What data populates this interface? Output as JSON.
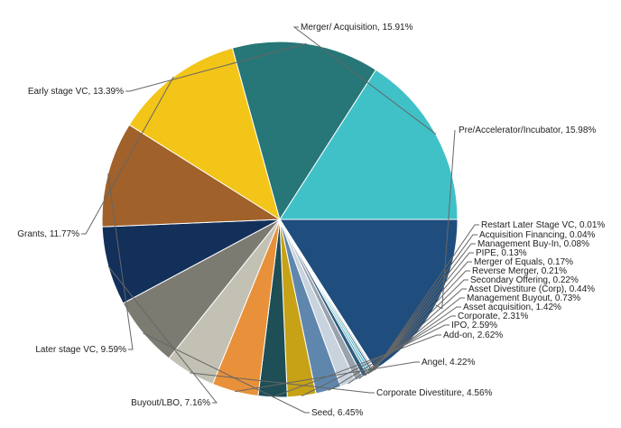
{
  "chart_data": {
    "type": "pie",
    "title": "",
    "start_angle_deg": 90,
    "direction": "clockwise",
    "slices": [
      {
        "label": "Pre/Accelerator/Incubator",
        "value": 15.98,
        "text": "Pre/Accelerator/Incubator, 15.98%",
        "color": "#1f4e7e"
      },
      {
        "label": "Restart Later Stage VC",
        "value": 0.01,
        "text": "Restart Later Stage VC, 0.01%",
        "color": "#e8a33a"
      },
      {
        "label": "Acquisition Financing",
        "value": 0.04,
        "text": "Acquisition Financing, 0.04%",
        "color": "#c79a14"
      },
      {
        "label": "Management Buy-In",
        "value": 0.08,
        "text": "Management Buy-In, 0.08%",
        "color": "#f0c419"
      },
      {
        "label": "PIPE",
        "value": 0.13,
        "text": "PIPE, 0.13%",
        "color": "#3e6b99"
      },
      {
        "label": "Merger of Equals",
        "value": 0.17,
        "text": "Merger of Equals, 0.17%",
        "color": "#1b3a66"
      },
      {
        "label": "Reverse Merger",
        "value": 0.21,
        "text": "Reverse Merger, 0.21%",
        "color": "#42c0c8"
      },
      {
        "label": "Secondary Offering",
        "value": 0.22,
        "text": "Secondary Offering, 0.22%",
        "color": "#5fa4bd"
      },
      {
        "label": "Asset Divestiture (Corp)",
        "value": 0.44,
        "text": "Asset Divestiture (Corp), 0.44%",
        "color": "#2d5d80"
      },
      {
        "label": "Management Buyout",
        "value": 0.73,
        "text": "Management Buyout, 0.73%",
        "color": "#9aa3ad"
      },
      {
        "label": "Asset acquisition",
        "value": 1.42,
        "text": "Asset acquisition, 1.42%",
        "color": "#c8d3de"
      },
      {
        "label": "Corporate",
        "value": 2.31,
        "text": "Corporate, 2.31%",
        "color": "#5f87ad"
      },
      {
        "label": "IPO",
        "value": 2.59,
        "text": "IPO, 2.59%",
        "color": "#c7a116"
      },
      {
        "label": "Add-on",
        "value": 2.62,
        "text": "Add-on, 2.62%",
        "color": "#1e4e56"
      },
      {
        "label": "Angel",
        "value": 4.22,
        "text": "Angel, 4.22%",
        "color": "#e8913a"
      },
      {
        "label": "Corporate Divestiture",
        "value": 4.56,
        "text": "Corporate Divestiture, 4.56%",
        "color": "#c3c0b4"
      },
      {
        "label": "Seed",
        "value": 6.45,
        "text": "Seed, 6.45%",
        "color": "#7c7b72"
      },
      {
        "label": "Buyout/LBO",
        "value": 7.16,
        "text": "Buyout/LBO, 7.16%",
        "color": "#13305a"
      },
      {
        "label": "Later stage VC",
        "value": 9.59,
        "text": "Later stage VC, 9.59%",
        "color": "#a0612a"
      },
      {
        "label": "Grants",
        "value": 11.77,
        "text": "Grants, 11.77%",
        "color": "#f2c518"
      },
      {
        "label": "Early stage VC",
        "value": 13.39,
        "text": "Early stage VC, 13.39%",
        "color": "#277678"
      },
      {
        "label": "Merger/ Acquisition",
        "value": 15.91,
        "text": "Merger/ Acquisition, 15.91%",
        "color": "#40c1c8"
      }
    ]
  }
}
